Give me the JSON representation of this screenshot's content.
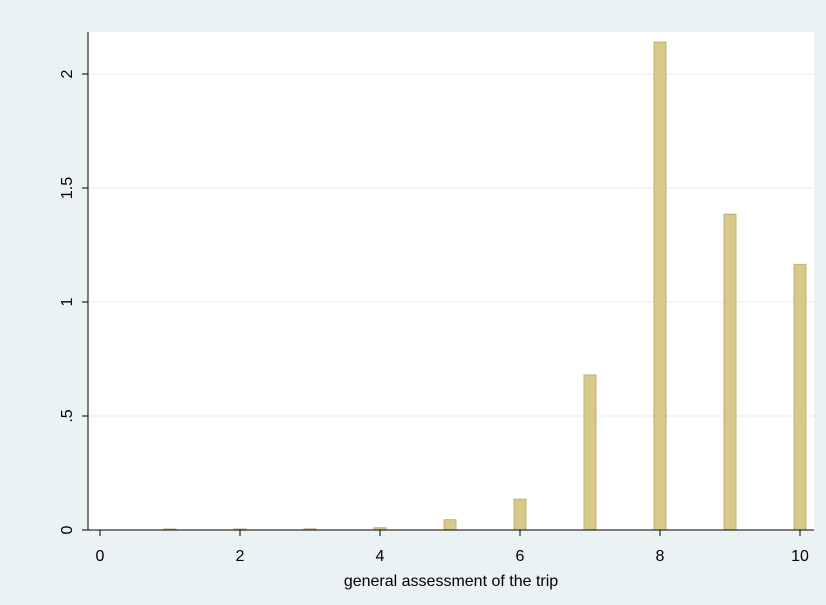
{
  "chart_data": {
    "type": "bar",
    "title": "",
    "xlabel": "general assessment of the trip",
    "ylabel": "",
    "x": [
      1,
      2,
      3,
      4,
      5,
      6,
      7,
      8,
      9,
      10
    ],
    "values": [
      0.004,
      0.004,
      0.005,
      0.01,
      0.045,
      0.135,
      0.68,
      2.14,
      1.385,
      1.165
    ],
    "xlim": [
      0,
      10
    ],
    "ylim": [
      0,
      2.2
    ],
    "xticks": [
      0,
      2,
      4,
      6,
      8,
      10
    ],
    "xtick_labels": [
      "0",
      "2",
      "4",
      "6",
      "8",
      "10"
    ],
    "yticks": [
      0,
      0.5,
      1,
      1.5,
      2
    ],
    "ytick_labels": [
      "0",
      ".5",
      "1",
      "1.5",
      "2"
    ],
    "grid": true,
    "colors": {
      "bar_fill": "#d6c98a",
      "bar_edge": "#bfb06e",
      "plot_bg": "#ffffff",
      "page_bg": "#eaf2f3"
    }
  }
}
